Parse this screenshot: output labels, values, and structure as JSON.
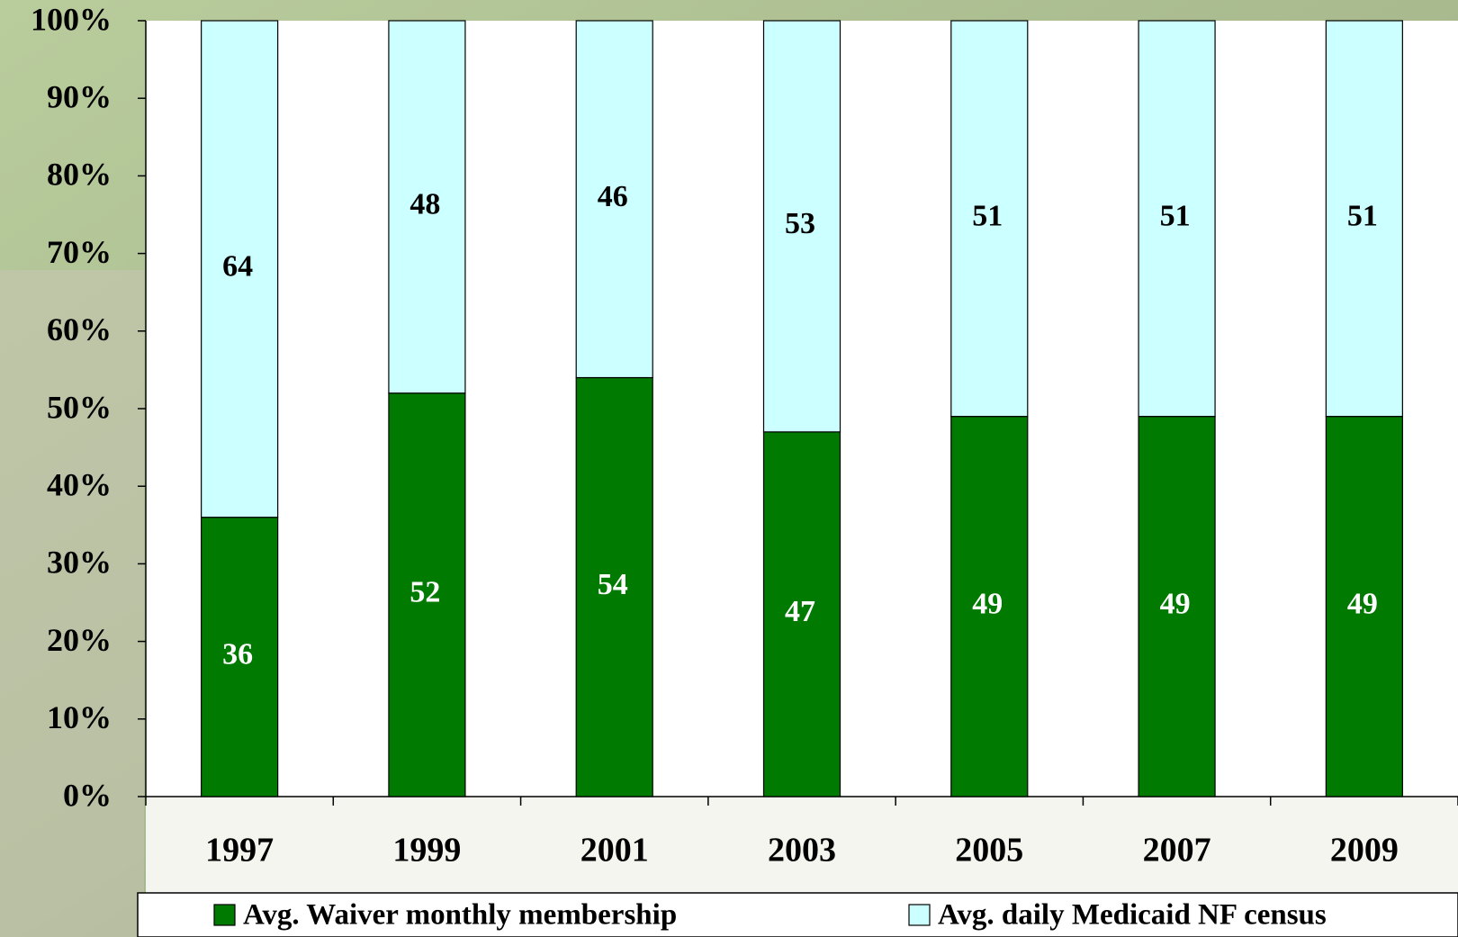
{
  "chart_data": {
    "type": "stacked_bar",
    "categories": [
      "1997",
      "1999",
      "2001",
      "2003",
      "2005",
      "2007",
      "2009"
    ],
    "series": [
      {
        "name": "Avg. Waiver monthly membership",
        "color": "#007a00",
        "label_color": "#ffffff",
        "values": [
          36,
          52,
          54,
          47,
          49,
          49,
          49
        ]
      },
      {
        "name": "Avg. daily Medicaid NF census",
        "color": "#ccffff",
        "label_color": "#000000",
        "values": [
          64,
          48,
          46,
          53,
          51,
          51,
          51
        ]
      }
    ],
    "ylim": [
      0,
      100
    ],
    "yticks": [
      {
        "value": 0,
        "label": "0%"
      },
      {
        "value": 10,
        "label": "10%"
      },
      {
        "value": 20,
        "label": "20%"
      },
      {
        "value": 30,
        "label": "30%"
      },
      {
        "value": 40,
        "label": "40%"
      },
      {
        "value": 50,
        "label": "50%"
      },
      {
        "value": 60,
        "label": "60%"
      },
      {
        "value": 70,
        "label": "70%"
      },
      {
        "value": 80,
        "label": "80%"
      },
      {
        "value": 90,
        "label": "90%"
      },
      {
        "value": 100,
        "label": "100%"
      }
    ],
    "legend": "bottom"
  }
}
